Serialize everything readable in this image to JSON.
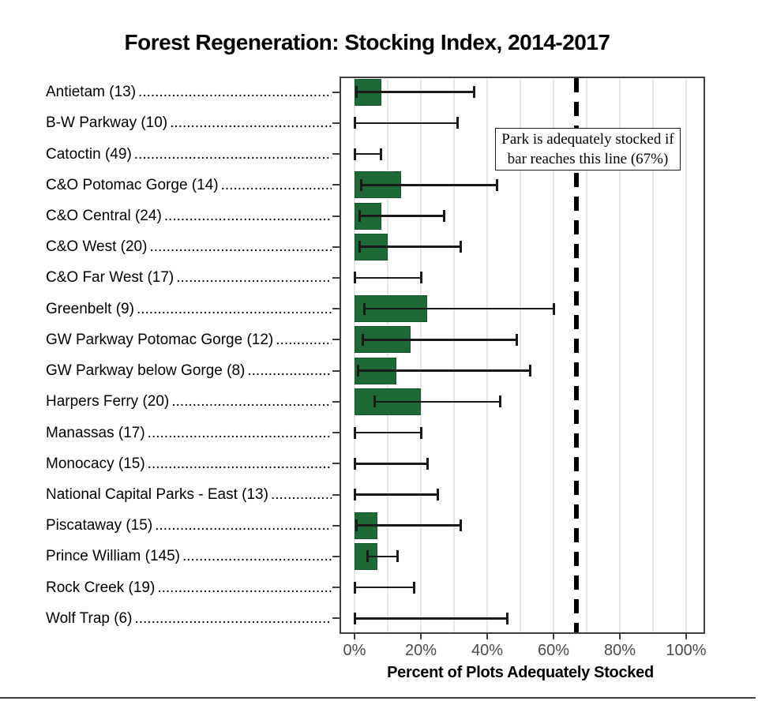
{
  "title": "Forest Regeneration: Stocking Index, 2014-2017",
  "x_axis": {
    "label": "Percent of Plots Adequately Stocked",
    "tick_labels": [
      "0%",
      "20%",
      "40%",
      "60%",
      "80%",
      "100%"
    ]
  },
  "annotation": {
    "line1": "Park is adequately stocked if",
    "line2": "bar reaches this line (67%)"
  },
  "leader_dots": "....................................................................................................",
  "colors": {
    "bar": "#1e6a37",
    "bar_border": "#175430",
    "grid": "#e7e7e7",
    "panel_border": "#3f3f3f",
    "whisker": "#1a1a1a",
    "tick_text": "#4a4a4a",
    "threshold": "#000000"
  },
  "chart_data": {
    "type": "bar",
    "orientation": "horizontal",
    "title": "Forest Regeneration: Stocking Index, 2014-2017",
    "xlabel": "Percent of Plots Adequately Stocked",
    "xlim": [
      0,
      100
    ],
    "x_ticks_pct": [
      0,
      20,
      40,
      60,
      80,
      100
    ],
    "minor_grid_step_pct": 10,
    "grid": "on",
    "threshold_pct": 67,
    "threshold_note": "Park is adequately stocked if bar reaches this line (67%)",
    "error_bars": "95% confidence interval",
    "parks": [
      {
        "label": "Antietam (13)",
        "value_pct": 8,
        "ci_low_pct": 0.5,
        "ci_high_pct": 36
      },
      {
        "label": "B-W Parkway (10)",
        "value_pct": 0,
        "ci_low_pct": 0,
        "ci_high_pct": 31
      },
      {
        "label": "Catoctin (49)",
        "value_pct": 0,
        "ci_low_pct": 0,
        "ci_high_pct": 8
      },
      {
        "label": "C&O Potomac Gorge (14)",
        "value_pct": 14,
        "ci_low_pct": 2,
        "ci_high_pct": 43
      },
      {
        "label": "C&O Central (24)",
        "value_pct": 8,
        "ci_low_pct": 1.5,
        "ci_high_pct": 27
      },
      {
        "label": "C&O West (20)",
        "value_pct": 10,
        "ci_low_pct": 1.5,
        "ci_high_pct": 32
      },
      {
        "label": "C&O Far West (17)",
        "value_pct": 0,
        "ci_low_pct": 0,
        "ci_high_pct": 20
      },
      {
        "label": "Greenbelt (9)",
        "value_pct": 22,
        "ci_low_pct": 3,
        "ci_high_pct": 60
      },
      {
        "label": "GW Parkway Potomac Gorge (12)",
        "value_pct": 17,
        "ci_low_pct": 2.5,
        "ci_high_pct": 49
      },
      {
        "label": "GW Parkway below Gorge (8)",
        "value_pct": 12.5,
        "ci_low_pct": 1,
        "ci_high_pct": 53
      },
      {
        "label": "Harpers Ferry (20)",
        "value_pct": 20,
        "ci_low_pct": 6,
        "ci_high_pct": 44
      },
      {
        "label": "Manassas (17)",
        "value_pct": 0,
        "ci_low_pct": 0,
        "ci_high_pct": 20
      },
      {
        "label": "Monocacy (15)",
        "value_pct": 0,
        "ci_low_pct": 0,
        "ci_high_pct": 22
      },
      {
        "label": "National Capital Parks - East (13)",
        "value_pct": 0,
        "ci_low_pct": 0,
        "ci_high_pct": 25
      },
      {
        "label": "Piscataway (15)",
        "value_pct": 7,
        "ci_low_pct": 0.5,
        "ci_high_pct": 32
      },
      {
        "label": "Prince William (145)",
        "value_pct": 7,
        "ci_low_pct": 4,
        "ci_high_pct": 13
      },
      {
        "label": "Rock Creek (19)",
        "value_pct": 0,
        "ci_low_pct": 0,
        "ci_high_pct": 18
      },
      {
        "label": "Wolf Trap (6)",
        "value_pct": 0,
        "ci_low_pct": 0,
        "ci_high_pct": 46
      }
    ]
  }
}
